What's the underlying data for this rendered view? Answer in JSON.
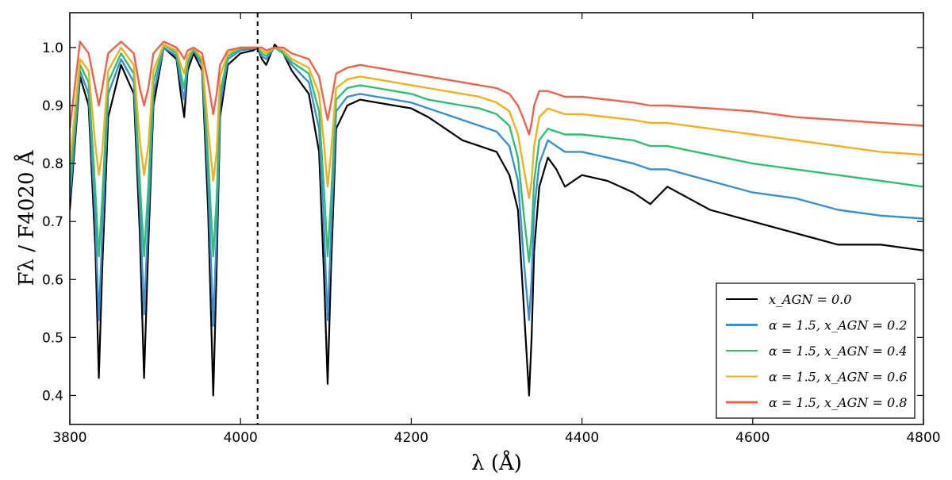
{
  "chart_data": {
    "type": "line",
    "xlabel": "λ (Å)",
    "ylabel": "Fλ / F4020 Å",
    "xlim": [
      3800,
      4800
    ],
    "ylim": [
      0.35,
      1.06
    ],
    "x_ticks": [
      3800,
      4000,
      4200,
      4400,
      4600,
      4800
    ],
    "y_ticks": [
      0.4,
      0.5,
      0.6,
      0.7,
      0.8,
      0.9,
      1.0
    ],
    "x_tick_labels": [
      "3800",
      "4000",
      "4200",
      "4400",
      "4600",
      "4800"
    ],
    "y_tick_labels": [
      "0.4",
      "0.5",
      "0.6",
      "0.7",
      "0.8",
      "0.9",
      "1.0"
    ],
    "grid": false,
    "legend_position": "bottom-right",
    "reference_line": {
      "x": 4020,
      "style": "dashed"
    },
    "series": [
      {
        "label": "x_AGN = 0.0",
        "color": "#000000",
        "x": [
          3800,
          3812,
          3822,
          3830,
          3834,
          3838,
          3845,
          3860,
          3875,
          3882,
          3887,
          3892,
          3898,
          3910,
          3925,
          3930,
          3934,
          3938,
          3945,
          3955,
          3962,
          3968,
          3972,
          3976,
          3985,
          4000,
          4015,
          4020,
          4025,
          4030,
          4040,
          4050,
          4060,
          4080,
          4092,
          4098,
          4102,
          4106,
          4112,
          4125,
          4140,
          4160,
          4180,
          4200,
          4220,
          4240,
          4260,
          4280,
          4300,
          4315,
          4325,
          4332,
          4338,
          4341,
          4344,
          4350,
          4360,
          4370,
          4380,
          4400,
          4430,
          4460,
          4480,
          4500,
          4550,
          4600,
          4650,
          4700,
          4750,
          4800
        ],
        "y": [
          0.72,
          0.95,
          0.9,
          0.65,
          0.43,
          0.62,
          0.88,
          0.97,
          0.92,
          0.68,
          0.43,
          0.66,
          0.9,
          1.0,
          0.98,
          0.92,
          0.88,
          0.96,
          0.99,
          0.96,
          0.72,
          0.4,
          0.62,
          0.88,
          0.97,
          0.99,
          0.995,
          1.0,
          0.98,
          0.97,
          1.005,
          0.99,
          0.96,
          0.92,
          0.82,
          0.6,
          0.42,
          0.62,
          0.86,
          0.9,
          0.91,
          0.905,
          0.9,
          0.895,
          0.88,
          0.86,
          0.84,
          0.83,
          0.82,
          0.78,
          0.72,
          0.55,
          0.4,
          0.5,
          0.65,
          0.76,
          0.81,
          0.79,
          0.76,
          0.78,
          0.77,
          0.75,
          0.73,
          0.76,
          0.72,
          0.7,
          0.68,
          0.66,
          0.66,
          0.65
        ]
      },
      {
        "label": "α=1.5, x_AGN=0.2",
        "color": "#3b8fd0",
        "x": [
          3800,
          3812,
          3822,
          3830,
          3834,
          3838,
          3845,
          3860,
          3875,
          3882,
          3887,
          3892,
          3898,
          3910,
          3925,
          3930,
          3934,
          3938,
          3945,
          3955,
          3962,
          3968,
          3972,
          3976,
          3985,
          4000,
          4015,
          4020,
          4025,
          4030,
          4040,
          4050,
          4060,
          4080,
          4092,
          4098,
          4102,
          4106,
          4112,
          4125,
          4140,
          4160,
          4180,
          4200,
          4220,
          4240,
          4260,
          4280,
          4300,
          4315,
          4325,
          4332,
          4338,
          4341,
          4344,
          4350,
          4360,
          4370,
          4380,
          4400,
          4430,
          4460,
          4480,
          4500,
          4550,
          4600,
          4650,
          4700,
          4750,
          4800
        ],
        "y": [
          0.74,
          0.96,
          0.92,
          0.7,
          0.53,
          0.68,
          0.92,
          0.98,
          0.94,
          0.73,
          0.54,
          0.71,
          0.92,
          1.0,
          0.985,
          0.94,
          0.91,
          0.97,
          0.995,
          0.97,
          0.77,
          0.52,
          0.68,
          0.9,
          0.98,
          0.995,
          0.998,
          1.0,
          0.985,
          0.98,
          1.0,
          0.99,
          0.97,
          0.94,
          0.86,
          0.68,
          0.53,
          0.68,
          0.89,
          0.915,
          0.92,
          0.915,
          0.91,
          0.905,
          0.895,
          0.885,
          0.875,
          0.865,
          0.855,
          0.83,
          0.77,
          0.63,
          0.53,
          0.6,
          0.72,
          0.8,
          0.84,
          0.83,
          0.82,
          0.82,
          0.81,
          0.8,
          0.79,
          0.79,
          0.77,
          0.75,
          0.74,
          0.72,
          0.71,
          0.705
        ]
      },
      {
        "label": "α=1.5, x_AGN=0.4",
        "color": "#2fbf71",
        "x": [
          3800,
          3812,
          3822,
          3830,
          3834,
          3838,
          3845,
          3860,
          3875,
          3882,
          3887,
          3892,
          3898,
          3910,
          3925,
          3930,
          3934,
          3938,
          3945,
          3955,
          3962,
          3968,
          3972,
          3976,
          3985,
          4000,
          4015,
          4020,
          4025,
          4030,
          4040,
          4050,
          4060,
          4080,
          4092,
          4098,
          4102,
          4106,
          4112,
          4125,
          4140,
          4160,
          4180,
          4200,
          4220,
          4240,
          4260,
          4280,
          4300,
          4315,
          4325,
          4332,
          4338,
          4341,
          4344,
          4350,
          4360,
          4370,
          4380,
          4400,
          4430,
          4460,
          4480,
          4500,
          4550,
          4600,
          4650,
          4700,
          4750,
          4800
        ],
        "y": [
          0.76,
          0.97,
          0.94,
          0.75,
          0.64,
          0.74,
          0.94,
          0.99,
          0.955,
          0.77,
          0.64,
          0.76,
          0.94,
          1.005,
          0.99,
          0.955,
          0.93,
          0.975,
          0.998,
          0.975,
          0.81,
          0.64,
          0.74,
          0.92,
          0.985,
          0.998,
          1.0,
          1.0,
          0.99,
          0.985,
          1.0,
          0.99,
          0.975,
          0.955,
          0.89,
          0.75,
          0.64,
          0.74,
          0.91,
          0.93,
          0.935,
          0.93,
          0.925,
          0.92,
          0.91,
          0.905,
          0.9,
          0.895,
          0.885,
          0.865,
          0.81,
          0.71,
          0.63,
          0.68,
          0.77,
          0.84,
          0.86,
          0.855,
          0.85,
          0.85,
          0.845,
          0.84,
          0.83,
          0.83,
          0.815,
          0.8,
          0.79,
          0.78,
          0.77,
          0.76
        ]
      },
      {
        "label": "α=1.5, x_AGN=0.6",
        "color": "#f2b01e",
        "x": [
          3800,
          3812,
          3822,
          3830,
          3834,
          3838,
          3845,
          3860,
          3875,
          3882,
          3887,
          3892,
          3898,
          3910,
          3925,
          3930,
          3934,
          3938,
          3945,
          3955,
          3962,
          3968,
          3972,
          3976,
          3985,
          4000,
          4015,
          4020,
          4025,
          4030,
          4040,
          4050,
          4060,
          4080,
          4092,
          4098,
          4102,
          4106,
          4112,
          4125,
          4140,
          4160,
          4180,
          4200,
          4220,
          4240,
          4260,
          4280,
          4300,
          4315,
          4325,
          4332,
          4338,
          4341,
          4344,
          4350,
          4360,
          4370,
          4380,
          4400,
          4430,
          4460,
          4480,
          4500,
          4550,
          4600,
          4650,
          4700,
          4750,
          4800
        ],
        "y": [
          0.8,
          0.98,
          0.96,
          0.83,
          0.78,
          0.82,
          0.96,
          1.0,
          0.97,
          0.84,
          0.78,
          0.83,
          0.96,
          1.005,
          0.995,
          0.97,
          0.955,
          0.985,
          1.0,
          0.98,
          0.86,
          0.77,
          0.82,
          0.95,
          0.99,
          1.0,
          1.0,
          1.0,
          0.995,
          0.99,
          1.0,
          0.995,
          0.98,
          0.965,
          0.92,
          0.83,
          0.76,
          0.82,
          0.93,
          0.945,
          0.95,
          0.945,
          0.94,
          0.935,
          0.93,
          0.925,
          0.92,
          0.915,
          0.905,
          0.89,
          0.85,
          0.79,
          0.74,
          0.77,
          0.83,
          0.88,
          0.895,
          0.89,
          0.885,
          0.885,
          0.88,
          0.875,
          0.87,
          0.87,
          0.86,
          0.85,
          0.84,
          0.83,
          0.82,
          0.815
        ]
      },
      {
        "label": "α=1.5, x_AGN=0.8",
        "color": "#f0624d",
        "x": [
          3800,
          3812,
          3822,
          3830,
          3834,
          3838,
          3845,
          3860,
          3875,
          3882,
          3887,
          3892,
          3898,
          3910,
          3925,
          3930,
          3934,
          3938,
          3945,
          3955,
          3962,
          3968,
          3972,
          3976,
          3985,
          4000,
          4015,
          4020,
          4025,
          4030,
          4040,
          4050,
          4060,
          4080,
          4092,
          4098,
          4102,
          4106,
          4112,
          4125,
          4140,
          4160,
          4180,
          4200,
          4220,
          4240,
          4260,
          4280,
          4300,
          4315,
          4325,
          4332,
          4338,
          4341,
          4344,
          4350,
          4360,
          4370,
          4380,
          4400,
          4430,
          4460,
          4480,
          4500,
          4550,
          4600,
          4650,
          4700,
          4750,
          4800
        ],
        "y": [
          0.86,
          1.01,
          0.99,
          0.93,
          0.9,
          0.93,
          0.99,
          1.01,
          0.99,
          0.93,
          0.9,
          0.93,
          0.99,
          1.01,
          1.0,
          0.99,
          0.98,
          0.995,
          1.0,
          0.99,
          0.94,
          0.885,
          0.92,
          0.97,
          0.995,
          1.0,
          1.0,
          1.0,
          1.0,
          0.995,
          1.0,
          1.0,
          0.99,
          0.98,
          0.95,
          0.905,
          0.875,
          0.905,
          0.955,
          0.965,
          0.97,
          0.965,
          0.96,
          0.955,
          0.95,
          0.945,
          0.94,
          0.935,
          0.93,
          0.92,
          0.9,
          0.875,
          0.85,
          0.87,
          0.9,
          0.925,
          0.925,
          0.92,
          0.915,
          0.915,
          0.91,
          0.905,
          0.9,
          0.9,
          0.895,
          0.89,
          0.88,
          0.875,
          0.87,
          0.865
        ]
      }
    ],
    "legend": [
      {
        "text": "x_AGN = 0.0",
        "color": "#000000",
        "width": 2
      },
      {
        "text": "α = 1.5,  x_AGN = 0.2",
        "color": "#3b8fd0",
        "width": 3
      },
      {
        "text": "α = 1.5,  x_AGN = 0.4",
        "color": "#2fbf71",
        "width": 2
      },
      {
        "text": "α = 1.5,  x_AGN = 0.6",
        "color": "#f2b01e",
        "width": 2
      },
      {
        "text": "α = 1.5,  x_AGN = 0.8",
        "color": "#f0624d",
        "width": 3
      }
    ]
  }
}
